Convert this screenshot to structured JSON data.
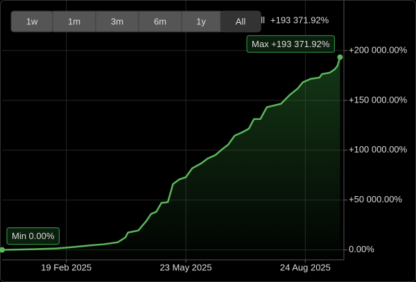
{
  "range_buttons": [
    {
      "label": "1w"
    },
    {
      "label": "1m"
    },
    {
      "label": "3m"
    },
    {
      "label": "6m"
    },
    {
      "label": "1y"
    },
    {
      "label": "All",
      "active": true
    }
  ],
  "chart_data": {
    "type": "line",
    "summary": {
      "label": "All",
      "value": "+193 371.92%"
    },
    "x": [
      "2024-12-31",
      "2025-01-25",
      "2025-02-11",
      "2025-02-24",
      "2025-03-07",
      "2025-03-20",
      "2025-03-31",
      "2025-04-06",
      "2025-04-08",
      "2025-04-16",
      "2025-04-22",
      "2025-04-26",
      "2025-04-30",
      "2025-05-04",
      "2025-05-09",
      "2025-05-13",
      "2025-05-18",
      "2025-05-23",
      "2025-05-28",
      "2025-06-04",
      "2025-06-09",
      "2025-06-15",
      "2025-06-20",
      "2025-06-25",
      "2025-06-30",
      "2025-07-05",
      "2025-07-11",
      "2025-07-15",
      "2025-07-20",
      "2025-07-25",
      "2025-07-29",
      "2025-08-05",
      "2025-08-12",
      "2025-08-18",
      "2025-08-22",
      "2025-08-28",
      "2025-09-04",
      "2025-09-06",
      "2025-09-12",
      "2025-09-16",
      "2025-09-18",
      "2025-09-20"
    ],
    "values": [
      0,
      700,
      1400,
      2800,
      4200,
      5600,
      7600,
      12500,
      17400,
      19400,
      28500,
      36100,
      38200,
      47200,
      47900,
      66000,
      70800,
      72900,
      81900,
      86800,
      91700,
      95100,
      100700,
      105600,
      114600,
      117400,
      121500,
      131200,
      131300,
      143100,
      144400,
      146500,
      155600,
      161800,
      168100,
      171500,
      172900,
      176400,
      177800,
      181300,
      184700,
      193371.92
    ],
    "color": "#5cb85c",
    "xlim": [
      "2024-12-31",
      "2025-09-23"
    ],
    "xticks": [
      {
        "value": "2025-02-19",
        "label": "19 Feb 2025"
      },
      {
        "value": "2025-05-23",
        "label": "23 May 2025"
      },
      {
        "value": "2025-08-24",
        "label": "24 Aug 2025"
      }
    ],
    "ylim": [
      -10000,
      250000
    ],
    "yticks": [
      {
        "value": 0,
        "label": "0.00%"
      },
      {
        "value": 50000,
        "label": "+50 000.00%"
      },
      {
        "value": 100000,
        "label": "+100 000.00%"
      },
      {
        "value": 150000,
        "label": "+150 000.00%"
      },
      {
        "value": 200000,
        "label": "+200 000.00%"
      }
    ],
    "grid": true,
    "max_label": "Max +193 371.92%",
    "min_label": "Min 0.00%"
  }
}
